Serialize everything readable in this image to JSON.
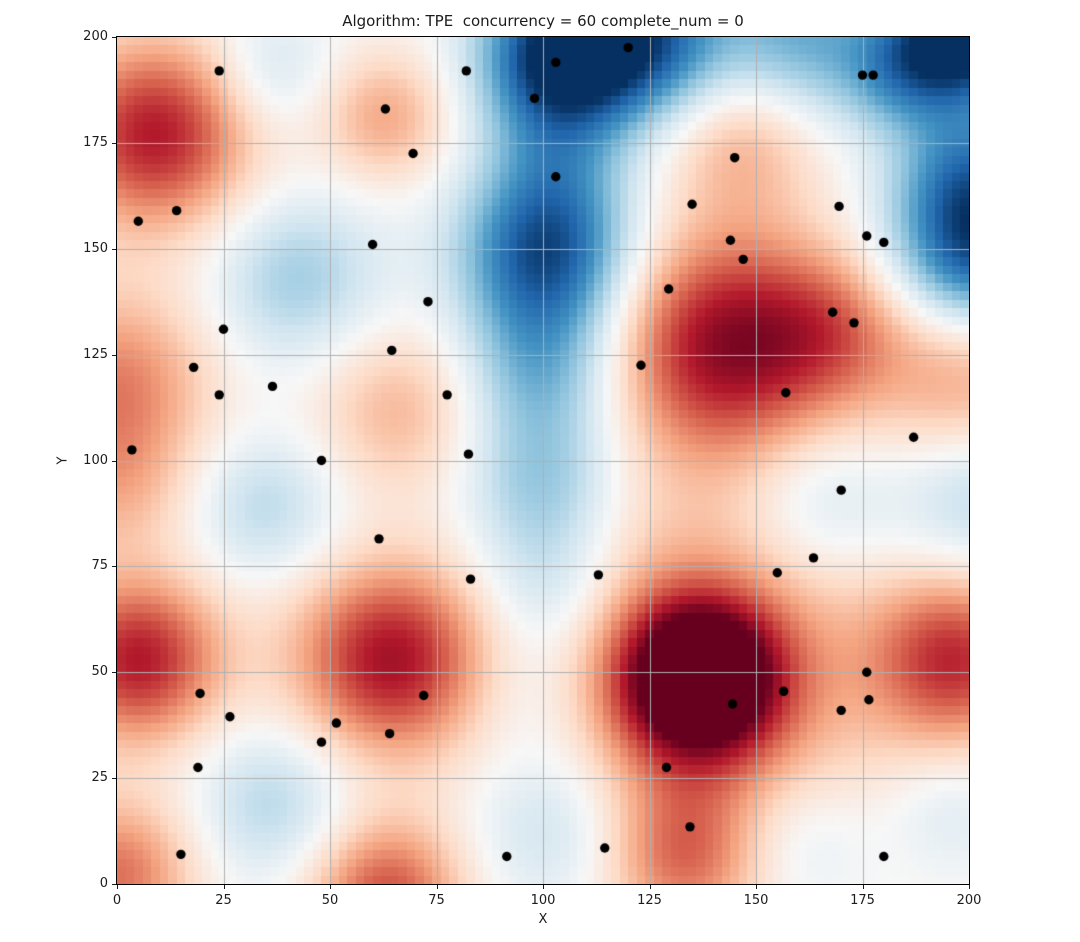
{
  "chart_data": {
    "type": "heatmap",
    "title": "Algorithm: TPE  concurrency = 60 complete_num = 0",
    "xlabel": "X",
    "ylabel": "Y",
    "xlim": [
      0,
      200
    ],
    "ylim": [
      0,
      200
    ],
    "xticks": [
      0,
      25,
      50,
      75,
      100,
      125,
      150,
      175,
      200
    ],
    "yticks": [
      0,
      25,
      50,
      75,
      100,
      125,
      150,
      175,
      200
    ],
    "grid": true,
    "grid_color": "#b0b0b0",
    "background": "#ffffff",
    "colormap": {
      "name": "RdBu_r",
      "anchors_low_to_high": [
        "#053061",
        "#2166ac",
        "#4393c3",
        "#92c5de",
        "#d1e5f0",
        "#f7f7f7",
        "#fddbc7",
        "#f4a582",
        "#d6604d",
        "#b2182b",
        "#67001f"
      ]
    },
    "value_range": [
      -1,
      1
    ],
    "heatmap_grid_resolution": 100,
    "field_gaussians": [
      {
        "x": 9,
        "y": 177,
        "amplitude": 0.8,
        "sigma": 16
      },
      {
        "x": 63,
        "y": 181,
        "amplitude": 0.38,
        "sigma": 11
      },
      {
        "x": 147,
        "y": 176,
        "amplitude": 0.35,
        "sigma": 13
      },
      {
        "x": 143,
        "y": 127.5,
        "amplitude": 0.88,
        "sigma": 19
      },
      {
        "x": 169,
        "y": 131,
        "amplitude": 0.35,
        "sigma": 13
      },
      {
        "x": 200,
        "y": 120,
        "amplitude": 0.4,
        "sigma": 15
      },
      {
        "x": 0,
        "y": 118,
        "amplitude": 0.5,
        "sigma": 16
      },
      {
        "x": 0,
        "y": 93,
        "amplitude": 0.25,
        "sigma": 12
      },
      {
        "x": 66,
        "y": 112,
        "amplitude": 0.33,
        "sigma": 14
      },
      {
        "x": 5,
        "y": 53,
        "amplitude": 0.8,
        "sigma": 14
      },
      {
        "x": 64,
        "y": 53,
        "amplitude": 0.82,
        "sigma": 16
      },
      {
        "x": 137,
        "y": 48.5,
        "amplitude": 1.15,
        "sigma": 13
      },
      {
        "x": 137,
        "y": 49,
        "amplitude": 0.5,
        "sigma": 30
      },
      {
        "x": 197,
        "y": 53,
        "amplitude": 0.7,
        "sigma": 14
      },
      {
        "x": 0,
        "y": 2,
        "amplitude": 0.55,
        "sigma": 13
      },
      {
        "x": 63,
        "y": -3,
        "amplitude": 0.65,
        "sigma": 13
      },
      {
        "x": 133,
        "y": 6,
        "amplitude": 0.45,
        "sigma": 13
      },
      {
        "x": 104,
        "y": 196,
        "amplitude": -1.05,
        "sigma": 13
      },
      {
        "x": 125,
        "y": 199,
        "amplitude": -0.75,
        "sigma": 13
      },
      {
        "x": 160,
        "y": 200,
        "amplitude": -0.5,
        "sigma": 14
      },
      {
        "x": 199,
        "y": 201,
        "amplitude": -1.1,
        "sigma": 11
      },
      {
        "x": 184,
        "y": 192,
        "amplitude": -0.45,
        "sigma": 10
      },
      {
        "x": 103,
        "y": 172,
        "amplitude": -0.3,
        "sigma": 12
      },
      {
        "x": 101,
        "y": 149,
        "amplitude": -0.88,
        "sigma": 14
      },
      {
        "x": 100,
        "y": 122,
        "amplitude": -0.45,
        "sigma": 13
      },
      {
        "x": 100,
        "y": 95,
        "amplitude": -0.4,
        "sigma": 13
      },
      {
        "x": 101,
        "y": 70,
        "amplitude": -0.3,
        "sigma": 12
      },
      {
        "x": 97,
        "y": 45,
        "amplitude": -0.18,
        "sigma": 12
      },
      {
        "x": 103,
        "y": 14,
        "amplitude": -0.3,
        "sigma": 14
      },
      {
        "x": 202,
        "y": 150,
        "amplitude": -0.9,
        "sigma": 14
      },
      {
        "x": 200,
        "y": 170,
        "amplitude": -0.45,
        "sigma": 12
      },
      {
        "x": 202,
        "y": 91,
        "amplitude": -0.3,
        "sigma": 13
      },
      {
        "x": 165,
        "y": 90,
        "amplitude": -0.25,
        "sigma": 13
      },
      {
        "x": 36,
        "y": 192,
        "amplitude": -0.22,
        "sigma": 10
      },
      {
        "x": 42,
        "y": 143,
        "amplitude": -0.35,
        "sigma": 14
      },
      {
        "x": 35,
        "y": 89,
        "amplitude": -0.28,
        "sigma": 12
      },
      {
        "x": 37,
        "y": 19,
        "amplitude": -0.3,
        "sigma": 13
      },
      {
        "x": 160,
        "y": 10,
        "amplitude": -0.2,
        "sigma": 12
      },
      {
        "x": 195,
        "y": 17,
        "amplitude": -0.15,
        "sigma": 10
      }
    ],
    "scatter": {
      "name": "evaluated-points",
      "marker": "circle",
      "color": "#000000",
      "radius_px": 4.7,
      "points": [
        [
          24,
          192
        ],
        [
          82,
          192
        ],
        [
          98,
          185.5
        ],
        [
          63,
          183
        ],
        [
          69.5,
          172.5
        ],
        [
          14,
          159
        ],
        [
          5,
          156.5
        ],
        [
          60,
          151
        ],
        [
          73,
          137.5
        ],
        [
          25,
          131
        ],
        [
          64.5,
          126
        ],
        [
          18,
          122
        ],
        [
          36.5,
          117.5
        ],
        [
          24,
          115.5
        ],
        [
          77.5,
          115.5
        ],
        [
          3.5,
          102.5
        ],
        [
          120,
          197.5
        ],
        [
          103,
          194
        ],
        [
          175,
          191
        ],
        [
          177.5,
          191
        ],
        [
          145,
          171.5
        ],
        [
          103,
          167
        ],
        [
          135,
          160.5
        ],
        [
          169.5,
          160
        ],
        [
          176,
          153
        ],
        [
          144,
          152
        ],
        [
          180,
          151.5
        ],
        [
          147,
          147.5
        ],
        [
          129.5,
          140.5
        ],
        [
          168,
          135
        ],
        [
          173,
          132.5
        ],
        [
          123,
          122.5
        ],
        [
          157,
          116
        ],
        [
          187,
          105.5
        ],
        [
          82.5,
          101.5
        ],
        [
          48,
          100
        ],
        [
          61.5,
          81.5
        ],
        [
          83,
          72
        ],
        [
          72,
          44.5
        ],
        [
          19.5,
          45
        ],
        [
          26.5,
          39.5
        ],
        [
          51.5,
          38
        ],
        [
          64,
          35.5
        ],
        [
          48,
          33.5
        ],
        [
          19,
          27.5
        ],
        [
          15,
          7
        ],
        [
          91.5,
          6.5
        ],
        [
          170,
          93
        ],
        [
          163.5,
          77
        ],
        [
          155,
          73.5
        ],
        [
          113,
          73
        ],
        [
          176,
          50
        ],
        [
          176.5,
          43.5
        ],
        [
          156.5,
          45.5
        ],
        [
          144.5,
          42.5
        ],
        [
          170,
          41
        ],
        [
          129,
          27.5
        ],
        [
          134.5,
          13.5
        ],
        [
          114.5,
          8.5
        ],
        [
          180,
          6.5
        ]
      ]
    }
  }
}
